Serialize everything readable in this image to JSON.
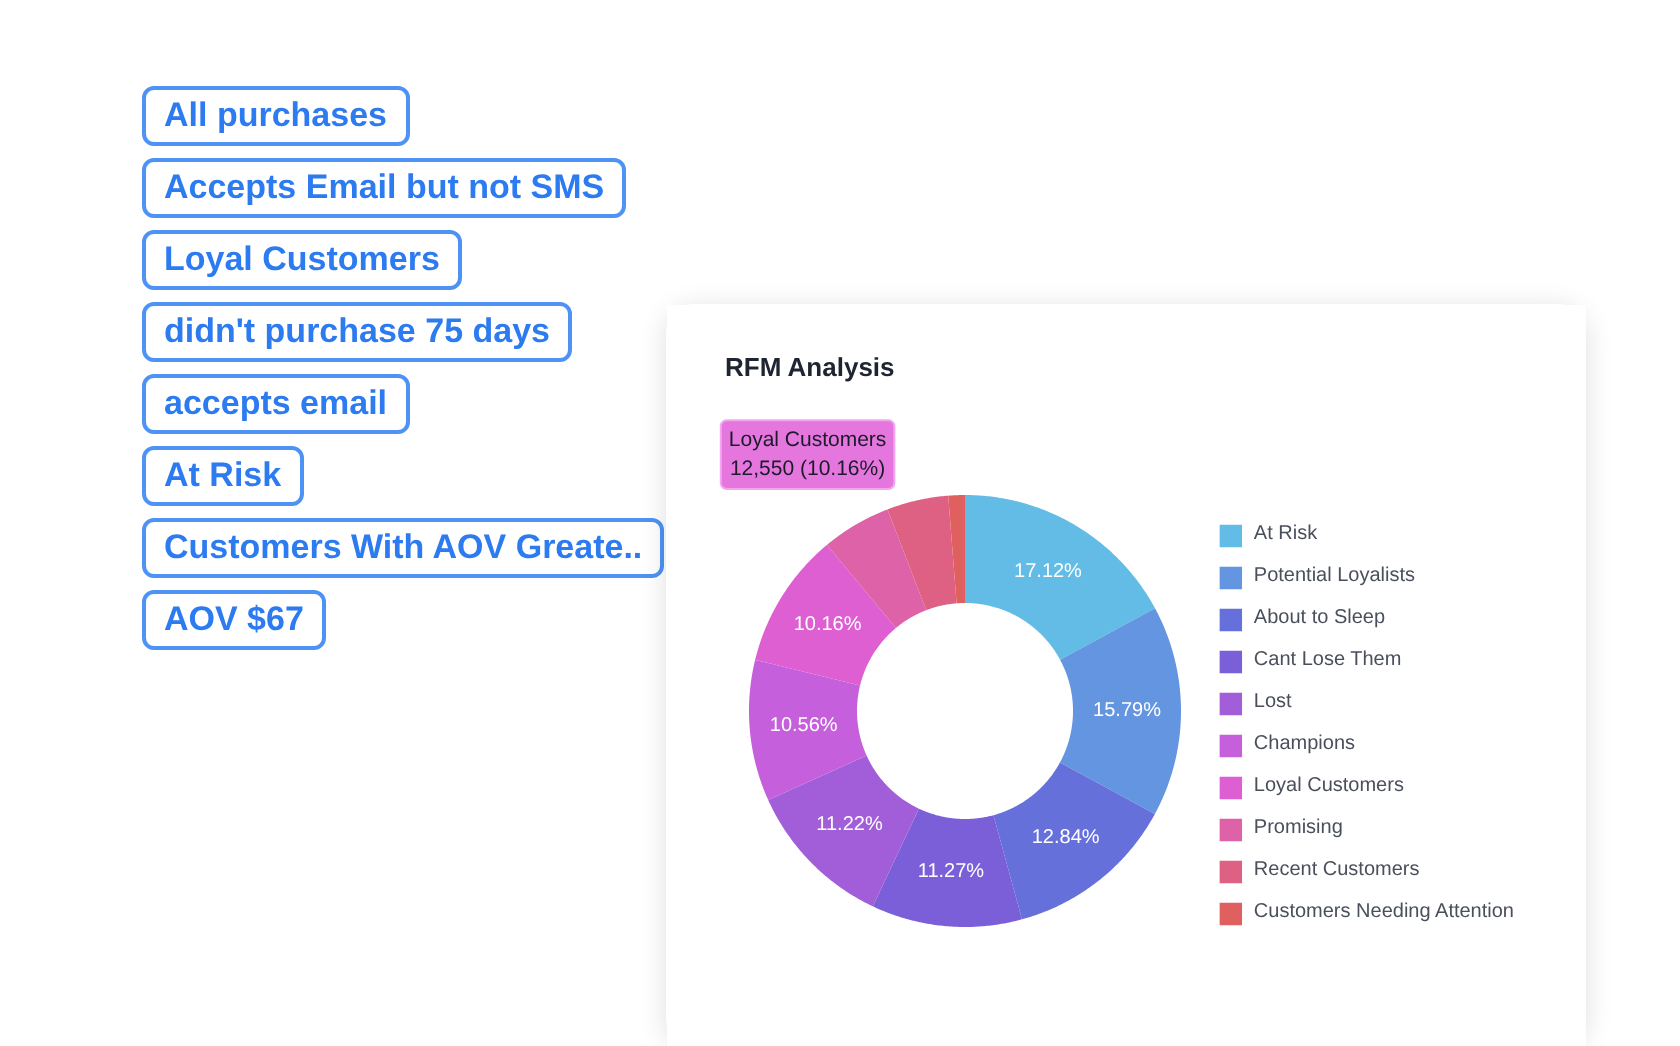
{
  "chart_data": {
    "type": "donut",
    "title": "RFM Analysis",
    "categories": [
      "At Risk",
      "Potential Loyalists",
      "About to Sleep",
      "Cant Lose Them",
      "Lost",
      "Champions",
      "Loyal Customers",
      "Promising",
      "Recent Customers",
      "Customers Needing Attention"
    ],
    "values": [
      17.12,
      15.79,
      12.84,
      11.27,
      11.22,
      10.56,
      10.16,
      5.2,
      4.6,
      1.24
    ],
    "colors": [
      "#63bce5",
      "#6495e0",
      "#6570db",
      "#7a5fd8",
      "#a25ed9",
      "#c55fdc",
      "#dd5fd2",
      "#de62a8",
      "#de6183",
      "#e0605f"
    ],
    "value_labels": [
      "17.12%",
      "15.79%",
      "12.84%",
      "11.27%",
      "11.22%",
      "10.56%",
      "10.16%",
      null,
      null,
      null
    ],
    "legend": "right",
    "annotations": [
      "All purchases",
      "Accepts Email but not SMS",
      "Loyal Customers",
      "didn't purchase 75 days",
      "accepts email",
      "At Risk",
      "Customers With AOV Greate..",
      "AOV $67",
      {
        "text": "Loyal Customers\n12,550 (10.16%)",
        "x": "Loyal Customers"
      }
    ]
  }
}
